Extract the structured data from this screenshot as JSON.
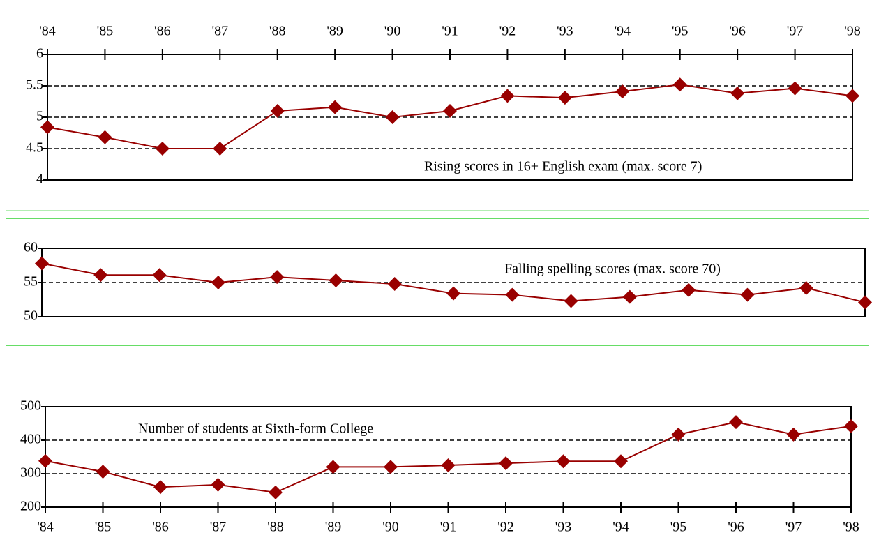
{
  "chart_data": [
    {
      "type": "line",
      "annotation": "Rising scores in 16+ English exam (max. score 7)",
      "categories": [
        "'84",
        "'85",
        "'86",
        "'87",
        "'88",
        "'89",
        "'90",
        "'91",
        "'92",
        "'93",
        "'94",
        "'95",
        "'96",
        "'97",
        "'98"
      ],
      "values": [
        4.84,
        4.68,
        4.5,
        4.5,
        5.1,
        5.16,
        5.0,
        5.1,
        5.34,
        5.31,
        5.41,
        5.52,
        5.38,
        5.46,
        5.34
      ],
      "color": "#990000",
      "ylim": [
        4,
        6
      ],
      "yticks": [
        4,
        4.5,
        5,
        5.5,
        6
      ],
      "grid": true,
      "x_labels": "top"
    },
    {
      "type": "line",
      "annotation": "Falling spelling scores (max. score 70)",
      "categories": [
        "'84",
        "'85",
        "'86",
        "'87",
        "'88",
        "'89",
        "'90",
        "'91",
        "'92",
        "'93",
        "'94",
        "'95",
        "'96",
        "'97",
        "'98"
      ],
      "values": [
        57.8,
        56.1,
        56.1,
        55.0,
        55.8,
        55.3,
        54.8,
        53.4,
        53.2,
        52.3,
        52.9,
        53.9,
        53.2,
        54.2,
        52.1
      ],
      "color": "#990000",
      "ylim": [
        50,
        60
      ],
      "yticks": [
        50,
        55,
        60
      ],
      "grid": true,
      "x_labels": "none"
    },
    {
      "type": "line",
      "annotation": "Number of students at Sixth-form College",
      "categories": [
        "'84",
        "'85",
        "'86",
        "'87",
        "'88",
        "'89",
        "'90",
        "'91",
        "'92",
        "'93",
        "'94",
        "'95",
        "'96",
        "'97",
        "'98"
      ],
      "values": [
        338,
        306,
        260,
        267,
        244,
        320,
        320,
        325,
        331,
        337,
        337,
        417,
        454,
        417,
        442
      ],
      "color": "#990000",
      "ylim": [
        200,
        500
      ],
      "yticks": [
        200,
        300,
        400,
        500
      ],
      "grid": true,
      "x_labels": "bottom"
    }
  ]
}
